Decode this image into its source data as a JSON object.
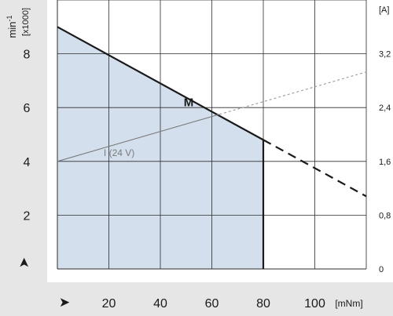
{
  "chart_data": {
    "type": "line",
    "title": "",
    "xlabel": "",
    "x_unit": "[mNm]",
    "x_arrow": "➤",
    "ylabel_left": "min⁻¹ [x1000]",
    "ylabel_left_line1": "min",
    "ylabel_left_sup": "-1",
    "ylabel_left_line2": "[x1000]",
    "ylabel_right": "[A]",
    "y_arrow": "➤",
    "xlim": [
      0,
      120
    ],
    "ylim_left": [
      0,
      10
    ],
    "ylim_right": [
      0,
      4
    ],
    "grid": true,
    "x_ticks": [
      {
        "value": 20,
        "label": "20"
      },
      {
        "value": 40,
        "label": "40"
      },
      {
        "value": 60,
        "label": "60"
      },
      {
        "value": 80,
        "label": "80"
      },
      {
        "value": 100,
        "label": "100"
      }
    ],
    "y_ticks_left": [
      {
        "value": 2,
        "label": "2"
      },
      {
        "value": 4,
        "label": "4"
      },
      {
        "value": 6,
        "label": "6"
      },
      {
        "value": 8,
        "label": "8"
      }
    ],
    "y_ticks_right": [
      {
        "value": 0,
        "label": "0"
      },
      {
        "value": 0.8,
        "label": "0,8"
      },
      {
        "value": 1.6,
        "label": "1,6"
      },
      {
        "value": 2.4,
        "label": "2,4"
      },
      {
        "value": 3.2,
        "label": "3,2"
      },
      {
        "value": 4.0,
        "label": "[A]"
      }
    ],
    "series": [
      {
        "name": "M",
        "axis": "left",
        "color": "#1a1a1a",
        "style": "solid",
        "x": [
          0,
          80
        ],
        "y": [
          9.0,
          4.8
        ]
      },
      {
        "name": "M",
        "axis": "left",
        "color": "#1a1a1a",
        "style": "dashed",
        "x": [
          80,
          120
        ],
        "y": [
          4.8,
          2.7
        ]
      },
      {
        "name": "I (24 V)",
        "axis": "right",
        "color": "#7a7a7a",
        "style": "solid",
        "x": [
          0,
          63
        ],
        "y": [
          1.6,
          2.3
        ]
      },
      {
        "name": "I (24 V)",
        "axis": "right",
        "color": "#9a9a9a",
        "style": "dotted",
        "x": [
          63,
          120
        ],
        "y": [
          2.3,
          2.93
        ]
      }
    ],
    "operating_area": {
      "color": "#d4dfee",
      "outline": "#1a1a1a",
      "x": [
        0,
        80
      ],
      "y_top": [
        9.0,
        4.8
      ],
      "x_limit": 80
    },
    "annotations": [
      {
        "text": "M",
        "x": 51,
        "y": 6.05,
        "axis": "left",
        "color": "#1a1a1a"
      },
      {
        "text": "I  (24 V)",
        "x": 24,
        "y": 4.2,
        "axis": "left",
        "color": "#7a7a7a"
      }
    ]
  },
  "colors": {
    "panel": "#e6e6e6",
    "grid": "#2b2b2b",
    "accent": "#1a1a1a"
  }
}
